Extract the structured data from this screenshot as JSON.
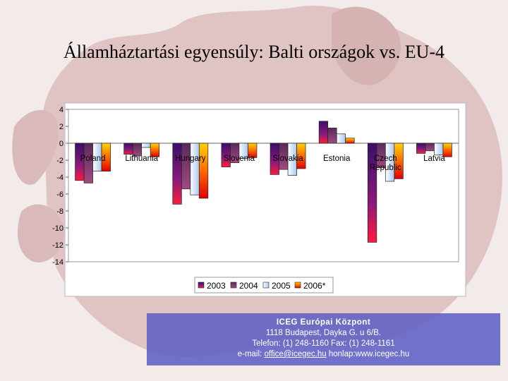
{
  "slide": {
    "title": "Államháztartási egyensúly: Balti országok vs. EU-4"
  },
  "footer": {
    "org": "ICEG Európai Központ",
    "address": "1118 Budapest, Dayka G. u 6/B.",
    "phone": "Telefon: (1) 248-1160 Fax: (1) 248-1161",
    "email_prefix": "e-mail:",
    "email": "office@icegec.hu",
    "web": "honlap:www.icegec.hu"
  },
  "colors": {
    "s2003": "#7a1a6e",
    "s2004": "#8a3a74",
    "s2005": "#c8dcf4",
    "s2006": "#ff6a00"
  },
  "chart_data": {
    "type": "bar",
    "title": "",
    "xlabel": "",
    "ylabel": "",
    "ylim": [
      -14,
      4
    ],
    "yticks": [
      4,
      2,
      0,
      -2,
      -4,
      -6,
      -8,
      -10,
      -12,
      -14
    ],
    "grid": false,
    "legend_position": "bottom",
    "categories": [
      "Poland",
      "Lithuania",
      "Hungary",
      "Slovenia",
      "Slovakia",
      "Estonia",
      "Czech Republic",
      "Latvia"
    ],
    "series": [
      {
        "name": "2003",
        "values": [
          -4.4,
          -1.3,
          -7.2,
          -2.8,
          -3.7,
          2.6,
          -11.7,
          -1.2
        ]
      },
      {
        "name": "2004",
        "values": [
          -4.7,
          -1.5,
          -5.4,
          -2.3,
          -3.1,
          1.8,
          -2.9,
          -0.9
        ]
      },
      {
        "name": "2005",
        "values": [
          -3.3,
          -0.5,
          -6.1,
          -1.8,
          -3.8,
          1.1,
          -4.5,
          -1.4
        ]
      },
      {
        "name": "2006*",
        "values": [
          -3.3,
          -1.6,
          -6.5,
          -1.7,
          -3.0,
          0.6,
          -4.2,
          -1.6
        ]
      }
    ]
  }
}
